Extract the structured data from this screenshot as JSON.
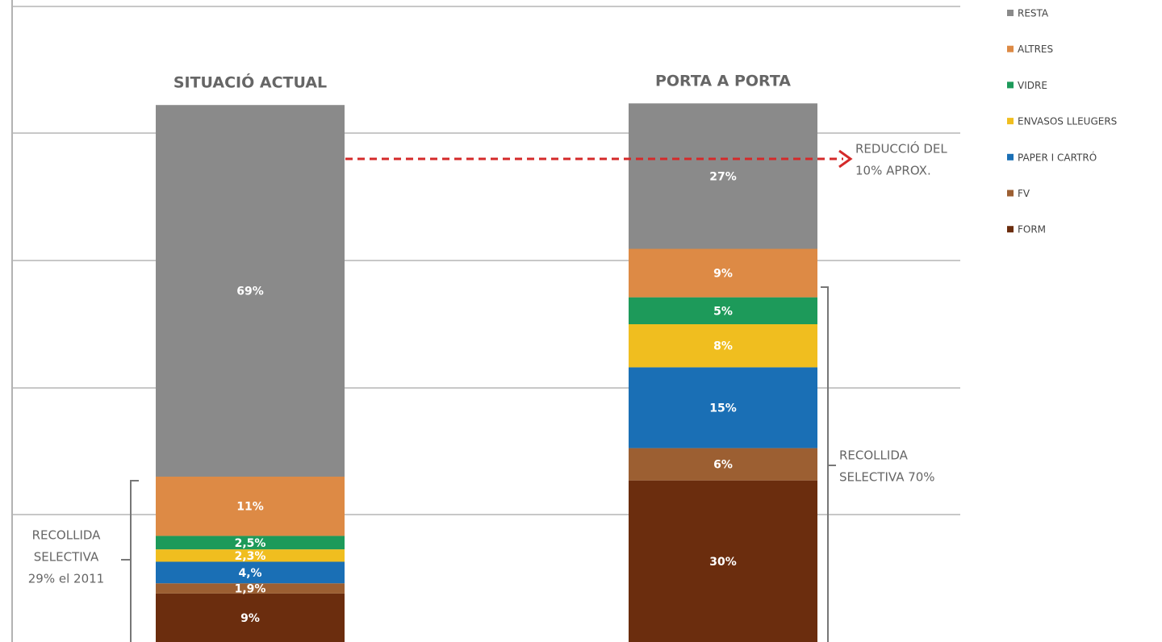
{
  "chart_data": {
    "type": "stacked_bar",
    "categories": [
      "SITUACIÓ ACTUAL",
      "PORTA A PORTA"
    ],
    "series": [
      {
        "name": "FORM",
        "color": "#6b2d0e",
        "values": [
          9,
          30
        ],
        "value_labels": [
          "9%",
          "30%"
        ]
      },
      {
        "name": "FV",
        "color": "#9c5f32",
        "values": [
          1.9,
          6
        ],
        "value_labels": [
          "1,9%",
          "6%"
        ]
      },
      {
        "name": "PAPER I CARTRÓ",
        "color": "#1a6fb5",
        "values": [
          4,
          15
        ],
        "value_labels": [
          "4,%",
          "15%"
        ]
      },
      {
        "name": "ENVASOS LLEUGERS",
        "color": "#f0be1f",
        "values": [
          2.3,
          8
        ],
        "value_labels": [
          "2,3%",
          "8%"
        ]
      },
      {
        "name": "VIDRE",
        "color": "#1d9a5a",
        "values": [
          2.5,
          5
        ],
        "value_labels": [
          "2,5%",
          "5%"
        ]
      },
      {
        "name": "ALTRES",
        "color": "#dd8a45",
        "values": [
          11,
          9
        ],
        "value_labels": [
          "11%",
          "9%"
        ]
      },
      {
        "name": "RESTA",
        "color": "#8a8a8a",
        "values": [
          69,
          27
        ],
        "value_labels": [
          "69%",
          "27%"
        ]
      }
    ],
    "ylim": [
      0,
      118
    ],
    "annotations": [
      {
        "lines": [
          "REDUCCIÓ DEL",
          "10% APROX."
        ]
      },
      {
        "lines": [
          "RECOLLIDA",
          "SELECTIVA",
          "29% el 2011"
        ]
      },
      {
        "lines": [
          "RECOLLIDA",
          "SELECTIVA 70%"
        ]
      }
    ]
  }
}
